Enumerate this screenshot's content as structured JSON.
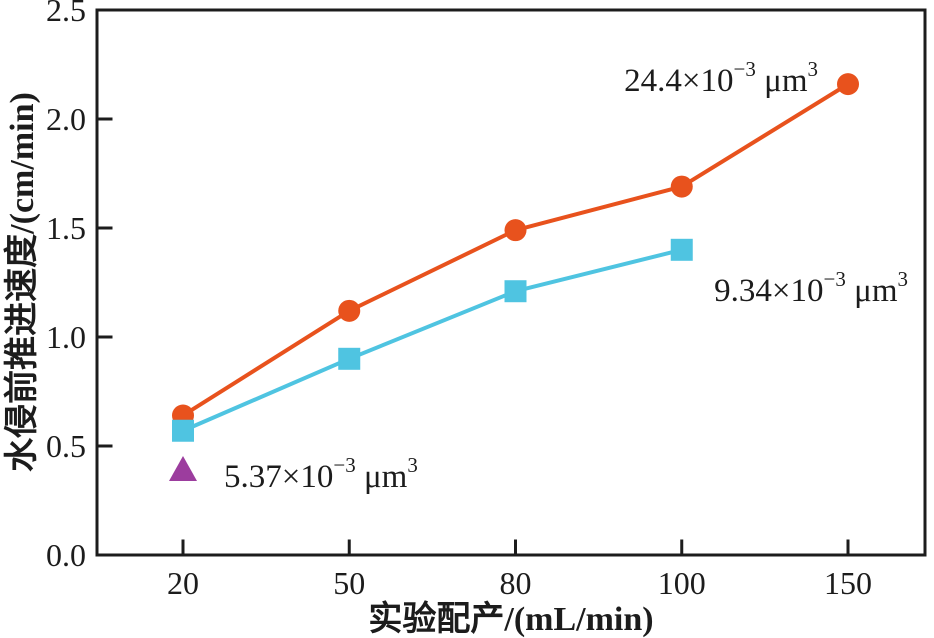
{
  "figure": {
    "background": "#ffffff",
    "axis_color": "#1c1c1c"
  },
  "chart_data": {
    "type": "line",
    "title": "",
    "xlabel": "实验配产/(mL/min)",
    "ylabel": "水侵前推进速度/(cm/min)",
    "categories": [
      20,
      50,
      80,
      100,
      150
    ],
    "x_tick_labels": [
      "20",
      "50",
      "80",
      "100",
      "150"
    ],
    "y_ticks": [
      0.0,
      0.5,
      1.0,
      1.5,
      2.0,
      2.5
    ],
    "y_tick_labels": [
      "0.0",
      "0.5",
      "1.0",
      "1.5",
      "2.0",
      "2.5"
    ],
    "ylim": [
      0,
      2.5
    ],
    "x_axis_type": "categorical",
    "grid": false,
    "legend": "none",
    "series": [
      {
        "name": "24.4×10⁻³ μm³",
        "marker": "circle",
        "color": "#e8521d",
        "values": [
          0.64,
          1.12,
          1.49,
          1.69,
          2.16
        ]
      },
      {
        "name": "9.34×10⁻³ μm³",
        "marker": "square",
        "color": "#4fc4e1",
        "values": [
          0.57,
          0.9,
          1.21,
          1.4
        ]
      },
      {
        "name": "5.37×10⁻³ μm³",
        "marker": "triangle",
        "color": "#9c3d9e",
        "values": [
          0.39
        ]
      }
    ],
    "annotations": [
      {
        "text": "24.4×10⁻³ μm³",
        "parts": [
          [
            "24.4×10",
            0
          ],
          [
            "−3",
            1
          ],
          [
            " μm",
            0
          ],
          [
            "3",
            1
          ]
        ],
        "anchor": "end",
        "x": 818,
        "y": 91
      },
      {
        "text": "9.34×10⁻³ μm³",
        "parts": [
          [
            "9.34×10",
            0
          ],
          [
            "−3",
            1
          ],
          [
            " μm",
            0
          ],
          [
            "3",
            1
          ]
        ],
        "anchor": "end",
        "x": 908,
        "y": 301
      },
      {
        "text": "5.37×10⁻³ μm³",
        "parts": [
          [
            "5.37×10",
            0
          ],
          [
            "−3",
            1
          ],
          [
            " μm",
            0
          ],
          [
            "3",
            1
          ]
        ],
        "anchor": "start",
        "x": 224,
        "y": 487
      }
    ]
  }
}
